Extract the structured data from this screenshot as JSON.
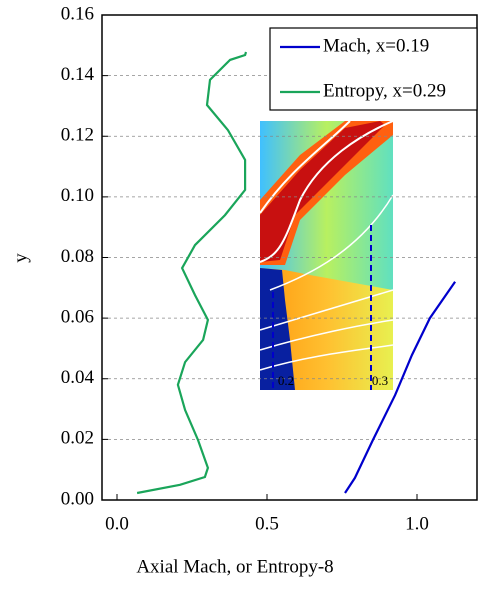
{
  "chart_data": {
    "type": "line",
    "xlabel": "Axial Mach, or Entropy-8",
    "ylabel": "y",
    "xlim": [
      -0.05,
      1.2
    ],
    "ylim": [
      0,
      0.16
    ],
    "xticks": [
      {
        "value": 0,
        "label": "0.0"
      },
      0.5,
      {
        "value": 1,
        "label": "1.0"
      }
    ],
    "yticks": [
      {
        "value": 0,
        "label": "0.00"
      },
      {
        "value": 0.02,
        "label": "0.02"
      },
      {
        "value": 0.04,
        "label": "0.04"
      },
      {
        "value": 0.06,
        "label": "0.06"
      },
      {
        "value": 0.08,
        "label": "0.08"
      },
      {
        "value": 0.1,
        "label": "0.10"
      },
      {
        "value": 0.12,
        "label": "0.12"
      },
      {
        "value": 0.14,
        "label": "0.14"
      },
      {
        "value": 0.16,
        "label": "0.16"
      }
    ],
    "grid": true,
    "legend": "upper right",
    "series": [
      {
        "name": "Mach, x=0.19",
        "color": "#0000cc",
        "x": [
          0.76,
          0.793,
          0.853,
          0.927,
          0.983,
          1.043,
          1.127
        ],
        "values": [
          0.0023,
          0.0073,
          0.0198,
          0.0346,
          0.0478,
          0.06,
          0.072
        ]
      },
      {
        "name": "Entropy, x=0.29",
        "color": "#1aa55a",
        "x": [
          0.067,
          0.21,
          0.293,
          0.303,
          0.27,
          0.227,
          0.203,
          0.227,
          0.287,
          0.303,
          0.26,
          0.217,
          0.26,
          0.36,
          0.427,
          0.427,
          0.37,
          0.3,
          0.31,
          0.377,
          0.427,
          0.43
        ],
        "values": [
          0.0023,
          0.005,
          0.0076,
          0.0106,
          0.0198,
          0.0297,
          0.038,
          0.0455,
          0.0528,
          0.0594,
          0.0676,
          0.0765,
          0.0841,
          0.094,
          0.1023,
          0.1122,
          0.122,
          0.1303,
          0.1386,
          0.1452,
          0.1468,
          0.1478
        ]
      }
    ],
    "inset": {
      "xticks": [
        "0.2",
        "0.3"
      ]
    }
  }
}
